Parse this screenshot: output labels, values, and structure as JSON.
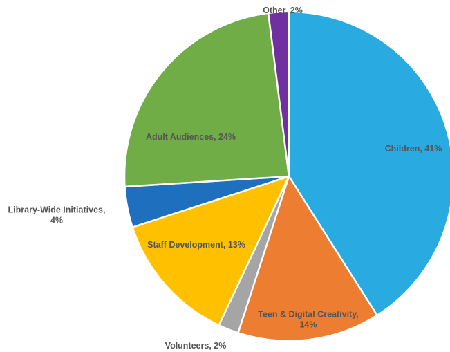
{
  "chart_data": {
    "type": "pie",
    "title": "",
    "start": "12 o'clock",
    "direction": "clockwise",
    "legend": "none",
    "slices": [
      {
        "label": "Children",
        "value": 41,
        "display": "Children, 41%",
        "lines": [
          "Children, 41%"
        ],
        "color": "#29ABE2"
      },
      {
        "label": "Teen & Digital Creativity",
        "value": 14,
        "display": "Teen & Digital Creativity, 14%",
        "lines": [
          "Teen & Digital Creativity,",
          "14%"
        ],
        "color": "#ED7D31"
      },
      {
        "label": "Volunteers",
        "value": 2,
        "display": "Volunteers, 2%",
        "lines": [
          "Volunteers, 2%"
        ],
        "color": "#A5A5A5"
      },
      {
        "label": "Staff Development",
        "value": 13,
        "display": "Staff Development, 13%",
        "lines": [
          "Staff Development, 13%"
        ],
        "color": "#FFC000"
      },
      {
        "label": "Library-Wide Initiatives",
        "value": 4,
        "display": "Library-Wide Initiatives, 4%",
        "lines": [
          "Library-Wide Initiatives,",
          "4%"
        ],
        "color": "#1F6FBF"
      },
      {
        "label": "Adult Audiences",
        "value": 24,
        "display": "Adult Audiences, 24%",
        "lines": [
          "Adult Audiences, 24%"
        ],
        "color": "#70AD47"
      },
      {
        "label": "Other",
        "value": 2,
        "display": "Other, 2%",
        "lines": [
          "Other, 2%"
        ],
        "color": "#7030A0"
      }
    ]
  }
}
